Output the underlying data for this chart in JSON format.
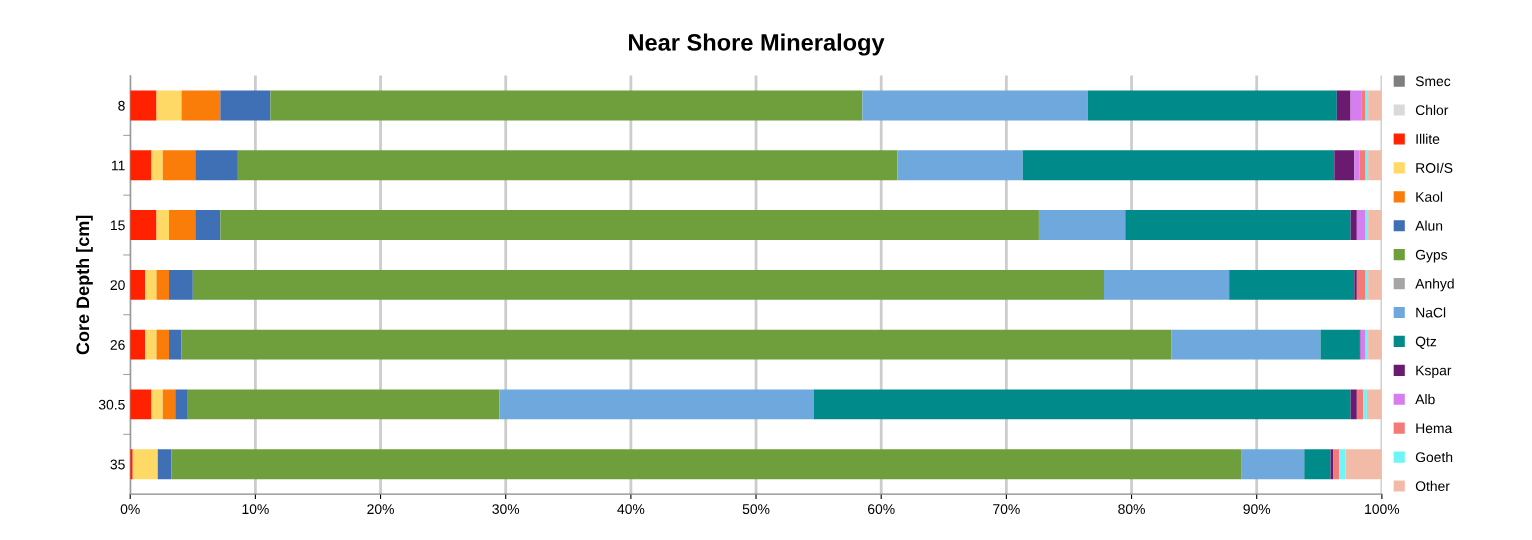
{
  "chart_data": {
    "type": "bar",
    "orientation": "horizontal",
    "stacked": true,
    "title": "Near Shore Mineralogy",
    "ylabel": "Core Depth [cm]",
    "categories": [
      "8",
      "11",
      "15",
      "20",
      "26",
      "30.5",
      "35"
    ],
    "xlim": [
      0,
      100
    ],
    "xticks": [
      {
        "value": 0,
        "label": "0%"
      },
      {
        "value": 10,
        "label": "10%"
      },
      {
        "value": 20,
        "label": "20%"
      },
      {
        "value": 30,
        "label": "30%"
      },
      {
        "value": 40,
        "label": "40%"
      },
      {
        "value": 50,
        "label": "50%"
      },
      {
        "value": 60,
        "label": "60%"
      },
      {
        "value": 70,
        "label": "70%"
      },
      {
        "value": 80,
        "label": "80%"
      },
      {
        "value": 90,
        "label": "90%"
      },
      {
        "value": 100,
        "label": "100%"
      }
    ],
    "grid": "x",
    "legend": "right",
    "series": [
      {
        "name": "Smec",
        "color": "#7f7f7f",
        "values": [
          0,
          0,
          0,
          0,
          0,
          0,
          0
        ]
      },
      {
        "name": "Chlor",
        "color": "#d9d9d9",
        "values": [
          0,
          0,
          0,
          0,
          0,
          0,
          0
        ]
      },
      {
        "name": "Illite",
        "color": "#ff2200",
        "values": [
          2.1,
          1.7,
          2.1,
          1.2,
          1.2,
          1.7,
          0.2
        ]
      },
      {
        "name": "ROI/S",
        "color": "#ffd966",
        "values": [
          2.0,
          0.9,
          1.0,
          0.9,
          0.9,
          0.9,
          2.0
        ]
      },
      {
        "name": "Kaol",
        "color": "#fa7d0a",
        "values": [
          3.1,
          2.6,
          2.1,
          1.0,
          1.0,
          1.0,
          0
        ]
      },
      {
        "name": "Alun",
        "color": "#3f6fb5",
        "values": [
          4.0,
          3.4,
          2.0,
          1.9,
          1.0,
          1.0,
          1.1
        ]
      },
      {
        "name": "Gyps",
        "color": "#6f9e3c",
        "values": [
          47.3,
          52.7,
          65.4,
          72.8,
          79.1,
          24.9,
          85.5
        ]
      },
      {
        "name": "Anhyd",
        "color": "#a6a6a6",
        "values": [
          0,
          0,
          0,
          0,
          0,
          0,
          0
        ]
      },
      {
        "name": "NaCl",
        "color": "#6fa8dc",
        "values": [
          18.0,
          10.0,
          6.9,
          10.0,
          11.9,
          25.1,
          5.0
        ]
      },
      {
        "name": "Qtz",
        "color": "#008b8b",
        "values": [
          19.9,
          24.9,
          18.0,
          10.0,
          3.1,
          42.9,
          2.1
        ]
      },
      {
        "name": "Kspar",
        "color": "#6a1b6f",
        "values": [
          1.1,
          1.6,
          0.5,
          0.2,
          0.1,
          0.5,
          0.2
        ]
      },
      {
        "name": "Alb",
        "color": "#d67ef0",
        "values": [
          0.9,
          0.4,
          0.7,
          0,
          0.4,
          0,
          0
        ]
      },
      {
        "name": "Hema",
        "color": "#f47a7a",
        "values": [
          0.3,
          0.5,
          0,
          0.7,
          0,
          0.5,
          0.5
        ]
      },
      {
        "name": "Goeth",
        "color": "#6ff5f5",
        "values": [
          0.2,
          0.2,
          0.2,
          0.2,
          0.2,
          0.3,
          0.5
        ]
      },
      {
        "name": "Other",
        "color": "#f2bba8",
        "values": [
          1.1,
          1.1,
          1.1,
          1.1,
          1.1,
          1.2,
          2.9
        ]
      }
    ]
  }
}
